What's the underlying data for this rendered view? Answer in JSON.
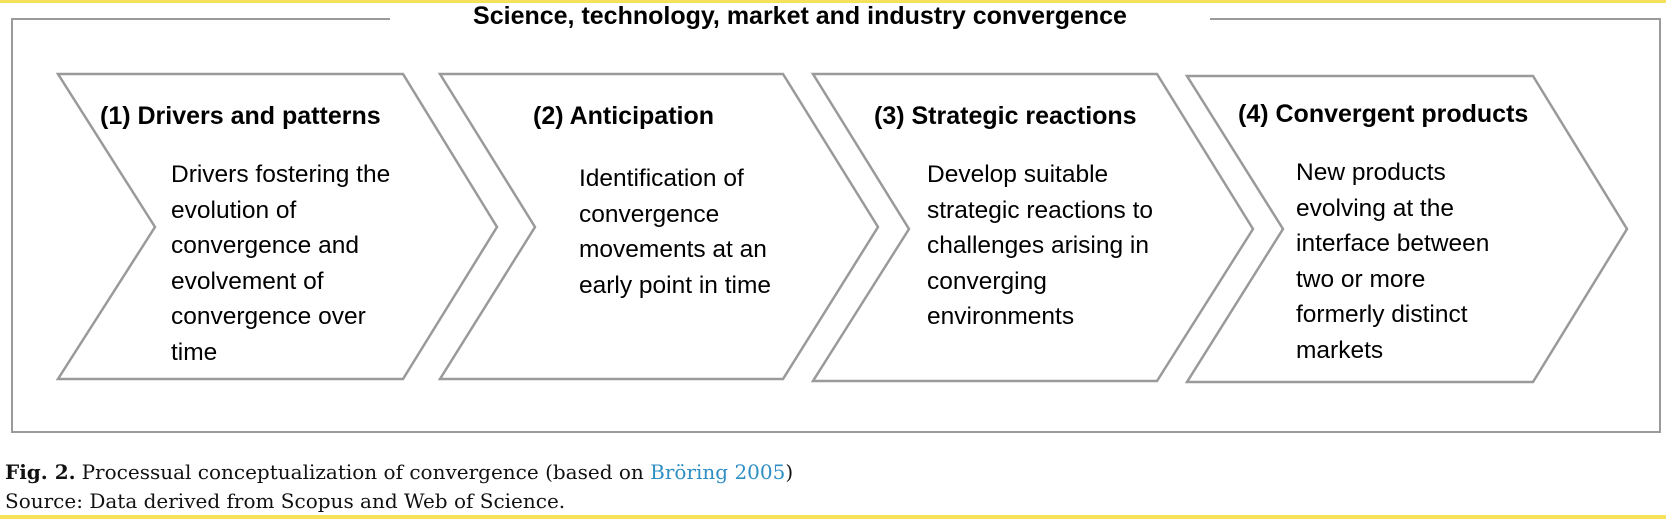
{
  "frame": {
    "title": "Science, technology, market and industry convergence"
  },
  "steps": [
    {
      "title": "(1) Drivers and patterns",
      "lines": [
        "Drivers fostering the",
        "evolution of",
        "convergence and",
        "evolvement of",
        "convergence over",
        "time"
      ]
    },
    {
      "title": "(2)  Anticipation",
      "lines": [
        "Identification of",
        "convergence",
        "movements at an",
        "early point in time"
      ]
    },
    {
      "title": "(3) Strategic reactions",
      "lines": [
        "Develop suitable",
        "strategic reactions to",
        "challenges arising in",
        "converging",
        "environments"
      ]
    },
    {
      "title": "(4) Convergent products",
      "lines": [
        "New products",
        "evolving at the",
        "interface between",
        "two or more",
        "formerly distinct",
        "markets"
      ]
    }
  ],
  "caption": {
    "label": "Fig. 2.",
    "text": "Processual conceptualization of convergence (based on ",
    "ref": "Bröring 2005",
    "close": ")"
  },
  "source": "Source: Data derived from Scopus and Web of Science.",
  "colors": {
    "accent_bar": "#f5e25a",
    "outline": "#9a9a9a",
    "link": "#2f8fc4"
  }
}
